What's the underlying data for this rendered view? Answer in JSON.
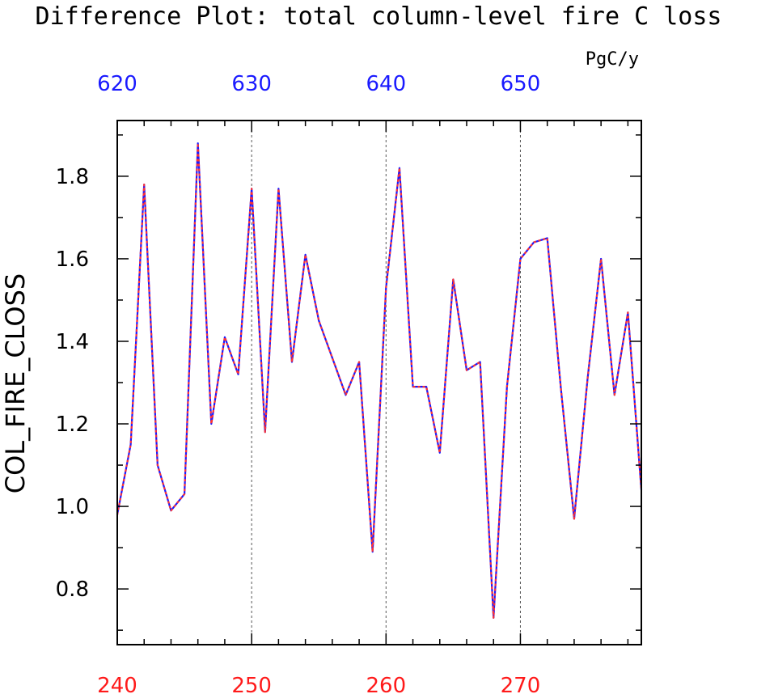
{
  "chart_data": {
    "type": "line",
    "title": "Difference Plot: total column-level fire C loss",
    "units": "PgC/y",
    "ylabel": "COL_FIRE_CLOSS",
    "xlim": [
      240,
      279
    ],
    "ylim": [
      0.665,
      1.935
    ],
    "bottom_axis": {
      "color": "#ff1a1a",
      "ticks": [
        240,
        250,
        260,
        270
      ],
      "labels": [
        "240",
        "250",
        "260",
        "270"
      ]
    },
    "top_axis": {
      "color": "#1a1aff",
      "ticks": [
        620,
        630,
        640,
        650
      ],
      "labels": [
        "620",
        "630",
        "640",
        "650"
      ],
      "offset": 380
    },
    "y_ticks": [
      0.8,
      1.0,
      1.2,
      1.4,
      1.6,
      1.8
    ],
    "y_tick_labels": [
      "0.8",
      "1.0",
      "1.2",
      "1.4",
      "1.6",
      "1.8"
    ],
    "vertical_gridlines": [
      250,
      260,
      270
    ],
    "colors": {
      "series_a": "#1a1aff",
      "series_b": "#ff3333"
    },
    "x": [
      240,
      241,
      242,
      243,
      244,
      245,
      246,
      247,
      248,
      249,
      250,
      251,
      252,
      253,
      254,
      255,
      256,
      257,
      258,
      259,
      260,
      261,
      262,
      263,
      264,
      265,
      266,
      267,
      268,
      269,
      270,
      271,
      272,
      273,
      274,
      275,
      276,
      277,
      278,
      279
    ],
    "series": [
      {
        "values": [
          0.98,
          1.15,
          1.78,
          1.1,
          0.99,
          1.03,
          1.88,
          1.2,
          1.41,
          1.32,
          1.77,
          1.18,
          1.77,
          1.35,
          1.61,
          1.45,
          1.36,
          1.27,
          1.35,
          0.89,
          1.53,
          1.82,
          1.29,
          1.29,
          1.13,
          1.55,
          1.33,
          1.35,
          0.73,
          1.29,
          1.6,
          1.64,
          1.65,
          1.29,
          0.97,
          1.31,
          1.6,
          1.27,
          1.47,
          1.04
        ]
      },
      {
        "values": [
          0.98,
          1.15,
          1.78,
          1.1,
          0.99,
          1.03,
          1.88,
          1.2,
          1.41,
          1.32,
          1.77,
          1.18,
          1.77,
          1.35,
          1.61,
          1.45,
          1.36,
          1.27,
          1.35,
          0.89,
          1.53,
          1.82,
          1.29,
          1.29,
          1.13,
          1.55,
          1.33,
          1.35,
          0.73,
          1.29,
          1.6,
          1.64,
          1.65,
          1.29,
          0.97,
          1.31,
          1.6,
          1.27,
          1.47,
          1.04
        ]
      }
    ]
  }
}
